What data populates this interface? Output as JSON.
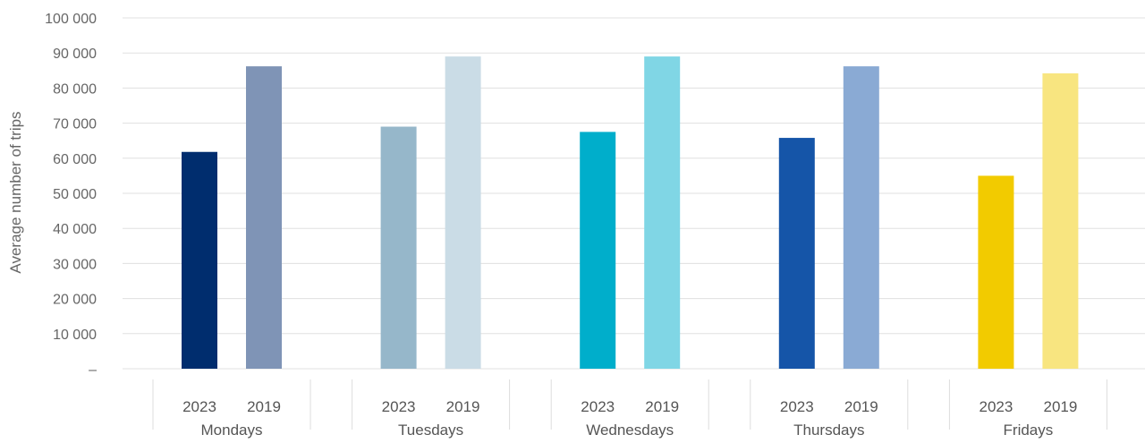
{
  "chart_data": {
    "type": "bar",
    "xlabel": "",
    "ylabel": "Average number of trips",
    "ylim": [
      0,
      100000
    ],
    "y_ticks": [
      {
        "value": 0,
        "label": "–"
      },
      {
        "value": 10000,
        "label": "10 000"
      },
      {
        "value": 20000,
        "label": "20 000"
      },
      {
        "value": 30000,
        "label": "30 000"
      },
      {
        "value": 40000,
        "label": "40 000"
      },
      {
        "value": 50000,
        "label": "50 000"
      },
      {
        "value": 60000,
        "label": "60 000"
      },
      {
        "value": 70000,
        "label": "70 000"
      },
      {
        "value": 80000,
        "label": "80 000"
      },
      {
        "value": 90000,
        "label": "90 000"
      },
      {
        "value": 100000,
        "label": "100 000"
      }
    ],
    "grid": true,
    "legend": "none",
    "groups": [
      {
        "label": "Mondays",
        "bars": [
          {
            "label": "2023",
            "value": 61800,
            "color": "#002D6E"
          },
          {
            "label": "2019",
            "value": 86200,
            "color": "#7F94B6"
          }
        ]
      },
      {
        "label": "Tuesdays",
        "bars": [
          {
            "label": "2023",
            "value": 69000,
            "color": "#96B7CA"
          },
          {
            "label": "2019",
            "value": 89000,
            "color": "#CADCE6"
          }
        ]
      },
      {
        "label": "Wednesdays",
        "bars": [
          {
            "label": "2023",
            "value": 67500,
            "color": "#00AECB"
          },
          {
            "label": "2019",
            "value": 89000,
            "color": "#80D6E5"
          }
        ]
      },
      {
        "label": "Thursdays",
        "bars": [
          {
            "label": "2023",
            "value": 65800,
            "color": "#1555A8"
          },
          {
            "label": "2019",
            "value": 86200,
            "color": "#8AAAD4"
          }
        ]
      },
      {
        "label": "Fridays",
        "bars": [
          {
            "label": "2023",
            "value": 55000,
            "color": "#F2CB00"
          },
          {
            "label": "2019",
            "value": 84200,
            "color": "#F8E580"
          }
        ]
      }
    ]
  },
  "colors": {
    "gridline": "#E0E0E0",
    "axis_text": "#666666",
    "category_text": "#555555",
    "separator": "#DDDDDD"
  }
}
